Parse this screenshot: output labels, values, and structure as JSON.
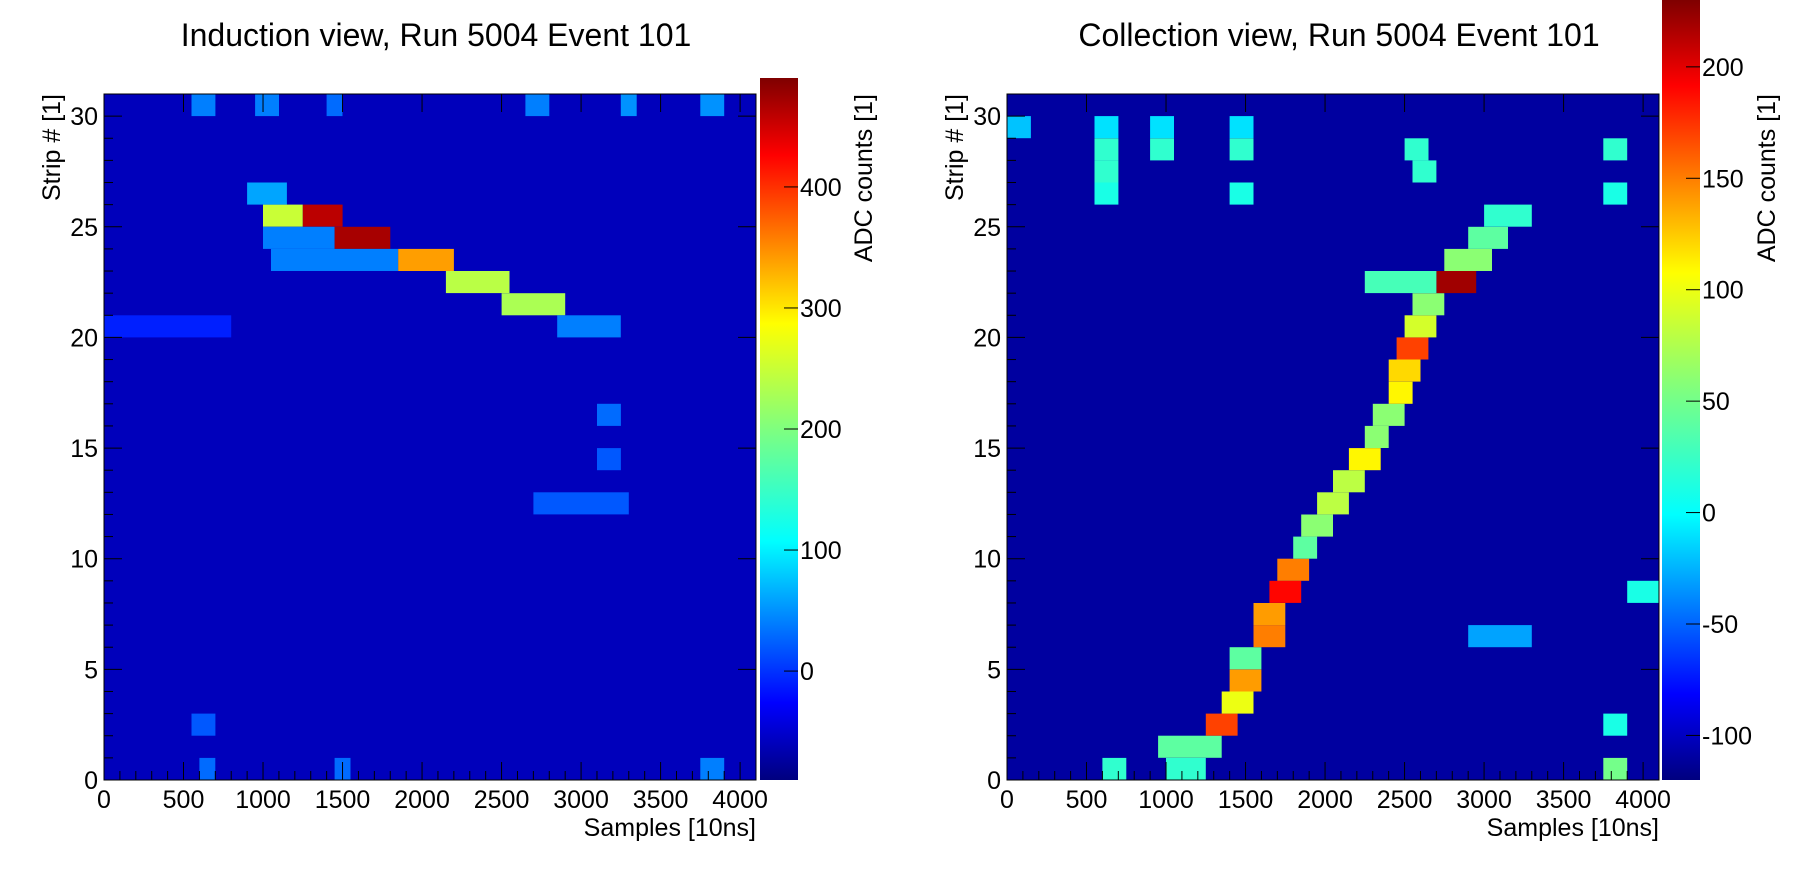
{
  "chart_data": [
    {
      "type": "heatmap",
      "title": "Induction view, Run 5004 Event 101",
      "xlabel": "Samples [10ns]",
      "ylabel": "Strip # [1]",
      "zlabel": "ADC counts [1]",
      "xlim": [
        0,
        4100
      ],
      "ylim": [
        0,
        31
      ],
      "zlim": [
        -90,
        490
      ],
      "x_ticks": [
        0,
        500,
        1000,
        1500,
        2000,
        2500,
        3000,
        3500,
        4000
      ],
      "y_ticks": [
        0,
        5,
        10,
        15,
        20,
        25,
        30
      ],
      "z_ticks": [
        0,
        100,
        200,
        300,
        400
      ],
      "x_bin_width": 136,
      "background_value": -60,
      "colormap": "jet (dark blue → cyan → yellow → red → dark red)",
      "hits": [
        {
          "strip": 25,
          "x_start": 1000,
          "x_end": 1250,
          "value": 250
        },
        {
          "strip": 25,
          "x_start": 1250,
          "x_end": 1500,
          "value": 460
        },
        {
          "strip": 26,
          "x_start": 900,
          "x_end": 1150,
          "value": 60
        },
        {
          "strip": 24,
          "x_start": 1000,
          "x_end": 1450,
          "value": 40
        },
        {
          "strip": 24,
          "x_start": 1450,
          "x_end": 1800,
          "value": 470
        },
        {
          "strip": 23,
          "x_start": 1050,
          "x_end": 1850,
          "value": 40
        },
        {
          "strip": 23,
          "x_start": 1850,
          "x_end": 2200,
          "value": 340
        },
        {
          "strip": 22,
          "x_start": 2150,
          "x_end": 2550,
          "value": 240
        },
        {
          "strip": 21,
          "x_start": 2500,
          "x_end": 2900,
          "value": 230
        },
        {
          "strip": 20,
          "x_start": 2850,
          "x_end": 3250,
          "value": 40
        },
        {
          "strip": 20,
          "x_start": 0,
          "x_end": 800,
          "value": -10
        },
        {
          "strip": 30,
          "x_start": 550,
          "x_end": 700,
          "value": 40
        },
        {
          "strip": 30,
          "x_start": 950,
          "x_end": 1100,
          "value": 40
        },
        {
          "strip": 30,
          "x_start": 1400,
          "x_end": 1500,
          "value": 30
        },
        {
          "strip": 30,
          "x_start": 2650,
          "x_end": 2800,
          "value": 40
        },
        {
          "strip": 30,
          "x_start": 3250,
          "x_end": 3350,
          "value": 50
        },
        {
          "strip": 30,
          "x_start": 3750,
          "x_end": 3900,
          "value": 50
        },
        {
          "strip": 16,
          "x_start": 3100,
          "x_end": 3250,
          "value": 30
        },
        {
          "strip": 14,
          "x_start": 3100,
          "x_end": 3250,
          "value": 20
        },
        {
          "strip": 12,
          "x_start": 2700,
          "x_end": 3300,
          "value": 20
        },
        {
          "strip": 0,
          "x_start": 600,
          "x_end": 700,
          "value": 30
        },
        {
          "strip": 0,
          "x_start": 1450,
          "x_end": 1550,
          "value": 30
        },
        {
          "strip": 0,
          "x_start": 3750,
          "x_end": 3900,
          "value": 40
        },
        {
          "strip": 2,
          "x_start": 550,
          "x_end": 700,
          "value": 20
        }
      ]
    },
    {
      "type": "heatmap",
      "title": "Collection view, Run 5004 Event 101",
      "xlabel": "Samples [10ns]",
      "ylabel": "Strip # [1]",
      "zlabel": "ADC counts [1]",
      "xlim": [
        0,
        4100
      ],
      "ylim": [
        0,
        31
      ],
      "zlim": [
        -120,
        230
      ],
      "x_ticks": [
        0,
        500,
        1000,
        1500,
        2000,
        2500,
        3000,
        3500,
        4000
      ],
      "y_ticks": [
        0,
        5,
        10,
        15,
        20,
        25,
        30
      ],
      "z_ticks": [
        -100,
        -50,
        0,
        50,
        100,
        150,
        200
      ],
      "x_bin_width": 136,
      "background_value": -110,
      "colormap": "jet (dark blue → cyan → yellow-green)",
      "hits": [
        {
          "strip": 1,
          "x_start": 950,
          "x_end": 1350,
          "value": 40
        },
        {
          "strip": 2,
          "x_start": 1250,
          "x_end": 1450,
          "value": 170
        },
        {
          "strip": 3,
          "x_start": 1350,
          "x_end": 1550,
          "value": 100
        },
        {
          "strip": 4,
          "x_start": 1400,
          "x_end": 1600,
          "value": 140
        },
        {
          "strip": 5,
          "x_start": 1400,
          "x_end": 1600,
          "value": 40
        },
        {
          "strip": 6,
          "x_start": 1550,
          "x_end": 1750,
          "value": 150
        },
        {
          "strip": 7,
          "x_start": 1550,
          "x_end": 1750,
          "value": 140
        },
        {
          "strip": 8,
          "x_start": 1650,
          "x_end": 1850,
          "value": 190
        },
        {
          "strip": 9,
          "x_start": 1700,
          "x_end": 1900,
          "value": 150
        },
        {
          "strip": 10,
          "x_start": 1800,
          "x_end": 1950,
          "value": 40
        },
        {
          "strip": 11,
          "x_start": 1850,
          "x_end": 2050,
          "value": 60
        },
        {
          "strip": 12,
          "x_start": 1950,
          "x_end": 2150,
          "value": 80
        },
        {
          "strip": 13,
          "x_start": 2050,
          "x_end": 2250,
          "value": 80
        },
        {
          "strip": 14,
          "x_start": 2150,
          "x_end": 2350,
          "value": 110
        },
        {
          "strip": 15,
          "x_start": 2250,
          "x_end": 2400,
          "value": 60
        },
        {
          "strip": 16,
          "x_start": 2300,
          "x_end": 2500,
          "value": 60
        },
        {
          "strip": 17,
          "x_start": 2400,
          "x_end": 2550,
          "value": 110
        },
        {
          "strip": 18,
          "x_start": 2400,
          "x_end": 2600,
          "value": 120
        },
        {
          "strip": 19,
          "x_start": 2450,
          "x_end": 2650,
          "value": 170
        },
        {
          "strip": 20,
          "x_start": 2500,
          "x_end": 2700,
          "value": 90
        },
        {
          "strip": 21,
          "x_start": 2550,
          "x_end": 2750,
          "value": 60
        },
        {
          "strip": 22,
          "x_start": 2700,
          "x_end": 2950,
          "value": 220
        },
        {
          "strip": 22,
          "x_start": 2250,
          "x_end": 2700,
          "value": 30
        },
        {
          "strip": 23,
          "x_start": 2750,
          "x_end": 3050,
          "value": 60
        },
        {
          "strip": 24,
          "x_start": 2900,
          "x_end": 3150,
          "value": 40
        },
        {
          "strip": 25,
          "x_start": 3000,
          "x_end": 3300,
          "value": 20
        },
        {
          "strip": 29,
          "x_start": 0,
          "x_end": 150,
          "value": -20
        },
        {
          "strip": 29,
          "x_start": 550,
          "x_end": 700,
          "value": -10
        },
        {
          "strip": 29,
          "x_start": 900,
          "x_end": 1050,
          "value": -10
        },
        {
          "strip": 29,
          "x_start": 1400,
          "x_end": 1550,
          "value": -10
        },
        {
          "strip": 28,
          "x_start": 550,
          "x_end": 700,
          "value": 20
        },
        {
          "strip": 28,
          "x_start": 900,
          "x_end": 1050,
          "value": 20
        },
        {
          "strip": 28,
          "x_start": 1400,
          "x_end": 1550,
          "value": 20
        },
        {
          "strip": 28,
          "x_start": 2500,
          "x_end": 2650,
          "value": 20
        },
        {
          "strip": 28,
          "x_start": 3750,
          "x_end": 3900,
          "value": 20
        },
        {
          "strip": 27,
          "x_start": 550,
          "x_end": 700,
          "value": 20
        },
        {
          "strip": 27,
          "x_start": 2550,
          "x_end": 2700,
          "value": 20
        },
        {
          "strip": 26,
          "x_start": 550,
          "x_end": 700,
          "value": 10
        },
        {
          "strip": 26,
          "x_start": 1400,
          "x_end": 1550,
          "value": 10
        },
        {
          "strip": 26,
          "x_start": 3750,
          "x_end": 3900,
          "value": 10
        },
        {
          "strip": 0,
          "x_start": 600,
          "x_end": 750,
          "value": 20
        },
        {
          "strip": 0,
          "x_start": 3750,
          "x_end": 3900,
          "value": 50
        },
        {
          "strip": 0,
          "x_start": 1000,
          "x_end": 1250,
          "value": 20
        },
        {
          "strip": 2,
          "x_start": 3750,
          "x_end": 3900,
          "value": 10
        },
        {
          "strip": 8,
          "x_start": 3900,
          "x_end": 4100,
          "value": 10
        },
        {
          "strip": 6,
          "x_start": 2900,
          "x_end": 3300,
          "value": -30
        }
      ]
    }
  ]
}
